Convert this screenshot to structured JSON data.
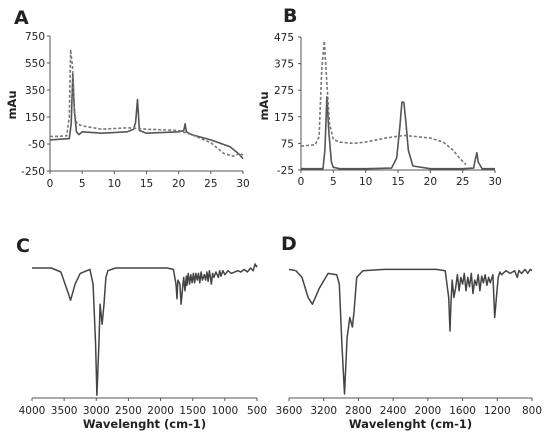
{
  "chart_data": [
    {
      "panel": "A",
      "type": "line",
      "ylabel": "mAu",
      "xlim": [
        0,
        30
      ],
      "ylim": [
        -250,
        750
      ],
      "xticks": [
        0,
        5,
        10,
        15,
        20,
        25,
        30
      ],
      "yticks": [
        750,
        550,
        350,
        150,
        -50,
        -250
      ],
      "series": [
        {
          "style": "solid",
          "x": [
            0,
            3.0,
            3.3,
            3.55,
            3.8,
            4.1,
            4.5,
            5,
            8,
            12,
            13.0,
            13.3,
            13.6,
            13.9,
            15,
            20,
            20.8,
            21.0,
            21.2,
            22,
            25,
            28,
            29.5,
            30
          ],
          "y": [
            -20,
            -10,
            100,
            470,
            200,
            40,
            20,
            40,
            30,
            40,
            60,
            110,
            280,
            50,
            30,
            40,
            50,
            100,
            40,
            20,
            -20,
            -70,
            -130,
            -160
          ]
        },
        {
          "style": "dashed",
          "x": [
            0,
            2.6,
            3.0,
            3.2,
            3.5,
            3.8,
            4.2,
            4.7,
            5.5,
            8,
            12,
            15,
            20,
            22,
            25,
            27,
            28.5,
            29.5,
            30
          ],
          "y": [
            5,
            10,
            150,
            650,
            520,
            180,
            100,
            90,
            80,
            60,
            70,
            60,
            50,
            20,
            -40,
            -120,
            -140,
            -120,
            -130
          ]
        }
      ]
    },
    {
      "panel": "B",
      "type": "line",
      "ylabel": "mAu",
      "xlim": [
        0,
        30
      ],
      "ylim": [
        -25,
        475
      ],
      "xticks": [
        0,
        5,
        10,
        15,
        20,
        25,
        30
      ],
      "yticks": [
        475,
        375,
        275,
        175,
        75,
        -25
      ],
      "series": [
        {
          "style": "solid",
          "x": [
            0,
            3.4,
            3.7,
            4.0,
            4.3,
            4.7,
            5.0,
            6,
            10,
            14,
            14.8,
            15.3,
            15.6,
            15.9,
            16.2,
            16.6,
            17.3,
            20,
            25,
            26.7,
            26.9,
            27.2,
            27.4,
            28,
            30
          ],
          "y": [
            -20,
            -20,
            50,
            250,
            120,
            5,
            -15,
            -20,
            -20,
            -18,
            20,
            140,
            230,
            230,
            160,
            50,
            -10,
            -20,
            -20,
            -18,
            10,
            40,
            5,
            -20,
            -20
          ]
        },
        {
          "style": "dashed",
          "x": [
            0,
            2.2,
            2.8,
            3.2,
            3.6,
            4.0,
            4.4,
            5.0,
            6,
            8,
            10,
            13,
            16,
            20,
            22,
            23.5,
            24.5,
            25.5
          ],
          "y": [
            65,
            70,
            100,
            350,
            460,
            300,
            150,
            90,
            80,
            75,
            80,
            95,
            105,
            95,
            80,
            50,
            20,
            -5
          ]
        }
      ]
    },
    {
      "panel": "C",
      "type": "line",
      "xlabel": "Wavelenght (cm-1)",
      "xlim": [
        4000,
        500
      ],
      "ylim": [
        0,
        100
      ],
      "xticks": [
        4000,
        3500,
        3000,
        2500,
        2000,
        1500,
        1000,
        500
      ],
      "series": [
        {
          "style": "solid",
          "x": [
            4000,
            3700,
            3550,
            3450,
            3400,
            3330,
            3250,
            3100,
            3050,
            3010,
            2990,
            2960,
            2940,
            2910,
            2880,
            2850,
            2820,
            2700,
            2300,
            1900,
            1800,
            1760,
            1745,
            1730,
            1700,
            1680,
            1650,
            1640,
            1620,
            1600,
            1590,
            1570,
            1550,
            1530,
            1510,
            1490,
            1470,
            1450,
            1430,
            1410,
            1390,
            1370,
            1350,
            1320,
            1300,
            1280,
            1260,
            1240,
            1210,
            1190,
            1170,
            1140,
            1100,
            1080,
            1060,
            1030,
            1000,
            950,
            900,
            800,
            750,
            700,
            650,
            600,
            560,
            530,
            510,
            500
          ],
          "y": [
            97,
            97,
            94,
            80,
            73,
            85,
            93,
            96,
            85,
            40,
            2,
            40,
            70,
            55,
            70,
            90,
            95,
            97,
            97,
            97,
            96,
            85,
            74,
            88,
            85,
            70,
            86,
            90,
            80,
            91,
            84,
            93,
            85,
            92,
            86,
            93,
            86,
            93,
            88,
            93,
            86,
            94,
            88,
            92,
            88,
            94,
            87,
            95,
            85,
            93,
            90,
            94,
            90,
            95,
            91,
            95,
            92,
            95,
            93,
            95,
            94,
            96,
            94,
            97,
            95,
            100,
            98,
            99
          ]
        }
      ]
    },
    {
      "panel": "D",
      "type": "line",
      "xlabel": "Wavelenght (cm-1)",
      "xlim": [
        3600,
        800
      ],
      "ylim": [
        0,
        100
      ],
      "xticks": [
        3600,
        3200,
        2800,
        2400,
        2000,
        1600,
        1200,
        800
      ],
      "series": [
        {
          "style": "solid",
          "x": [
            3600,
            3520,
            3450,
            3380,
            3330,
            3250,
            3150,
            3050,
            3020,
            2990,
            2960,
            2930,
            2900,
            2870,
            2850,
            2820,
            2750,
            2500,
            2200,
            1900,
            1800,
            1760,
            1745,
            1735,
            1720,
            1700,
            1680,
            1660,
            1640,
            1620,
            1600,
            1580,
            1560,
            1540,
            1520,
            1500,
            1480,
            1460,
            1440,
            1420,
            1400,
            1380,
            1360,
            1340,
            1320,
            1300,
            1280,
            1250,
            1230,
            1210,
            1190,
            1170,
            1150,
            1100,
            1050,
            1000,
            970,
            950,
            920,
            880,
            850,
            820,
            800
          ],
          "y": [
            96,
            95,
            90,
            75,
            70,
            82,
            93,
            92,
            85,
            40,
            3,
            45,
            60,
            53,
            65,
            90,
            95,
            96,
            96,
            96,
            95,
            75,
            50,
            70,
            88,
            75,
            82,
            92,
            80,
            90,
            85,
            93,
            80,
            90,
            83,
            93,
            78,
            88,
            84,
            92,
            80,
            91,
            86,
            92,
            84,
            90,
            86,
            92,
            60,
            75,
            90,
            94,
            92,
            95,
            93,
            95,
            90,
            95,
            93,
            96,
            93,
            96,
            95
          ]
        }
      ]
    }
  ]
}
